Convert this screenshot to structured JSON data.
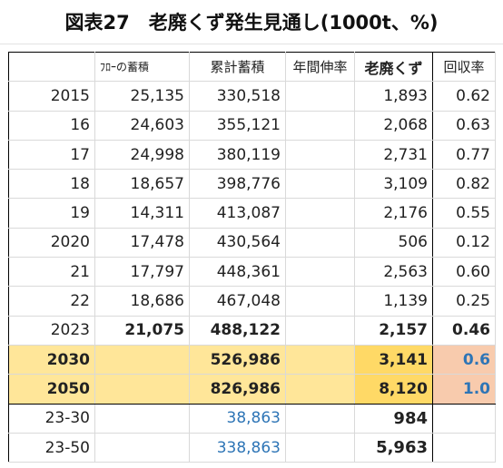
{
  "title": "図表27　老廃くず発生見通し(1000t、%)",
  "headers": [
    "",
    "ﾌﾛｰの蓄積",
    "累計蓄積",
    "年間伸率",
    "老廃くず",
    "回収率"
  ],
  "rows": [
    [
      "2015",
      "25,135",
      "330,518",
      "",
      "1,893",
      "0.62"
    ],
    [
      "16",
      "24,603",
      "355,121",
      "",
      "2,068",
      "0.63"
    ],
    [
      "17",
      "24,998",
      "380,119",
      "",
      "2,731",
      "0.77"
    ],
    [
      "18",
      "18,657",
      "398,776",
      "",
      "3,109",
      "0.82"
    ],
    [
      "19",
      "14,311",
      "413,087",
      "",
      "2,176",
      "0.55"
    ],
    [
      "2020",
      "17,478",
      "430,564",
      "",
      "506",
      "0.12"
    ],
    [
      "21",
      "17,797",
      "448,361",
      "",
      "2,563",
      "0.60"
    ],
    [
      "22",
      "18,686",
      "467,048",
      "",
      "1,139",
      "0.25"
    ],
    [
      "2023",
      "21,075",
      "488,122",
      "",
      "2,157",
      "0.46"
    ],
    [
      "2030",
      "",
      "526,986",
      "",
      "3,141",
      "0.6"
    ],
    [
      "2050",
      "",
      "826,986",
      "",
      "8,120",
      "1.0"
    ],
    [
      "23-30",
      "",
      "38,863",
      "",
      "984",
      ""
    ],
    [
      "23-50",
      "",
      "338,863",
      "",
      "5,963",
      ""
    ]
  ],
  "colors": {
    "highlight_yellow": "#ffe699",
    "highlight_orange": "#f8cbad",
    "blue_text": "#2e75b6"
  }
}
